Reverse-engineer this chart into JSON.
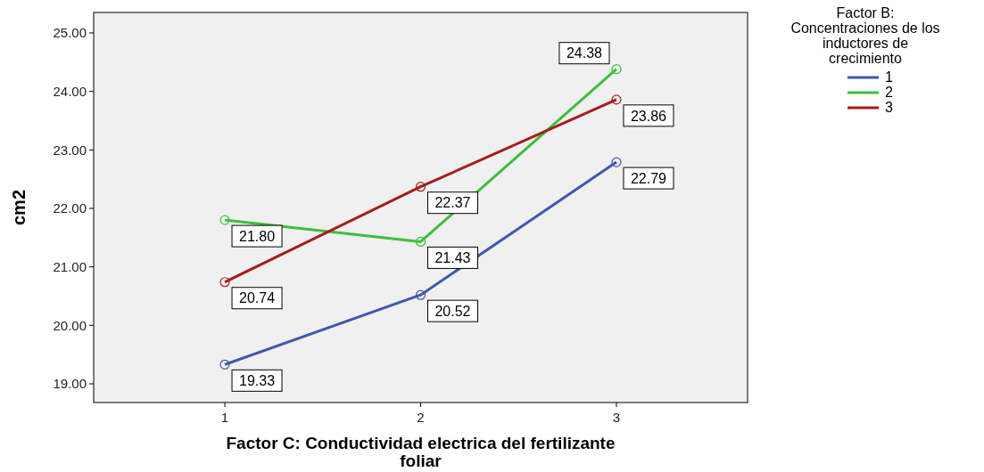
{
  "chart_data": {
    "type": "line",
    "xlabel": "Factor C: Conductividad electrica del fertilizante foliar",
    "ylabel": "cm2",
    "legend_title": "Factor B: Concentraciones de los inductores de crecimiento",
    "categories": [
      "1",
      "2",
      "3"
    ],
    "series": [
      {
        "name": "1",
        "color": "#3e58ac",
        "values": [
          19.33,
          20.52,
          22.79
        ],
        "value_labels": [
          "19.33",
          "20.52",
          "22.79"
        ]
      },
      {
        "name": "2",
        "color": "#3cbf3c",
        "values": [
          21.8,
          21.43,
          24.38
        ],
        "value_labels": [
          "21.80",
          "21.43",
          "24.38"
        ]
      },
      {
        "name": "3",
        "color": "#a51d1d",
        "values": [
          20.74,
          22.37,
          23.86
        ],
        "value_labels": [
          "20.74",
          "22.37",
          "23.86"
        ]
      }
    ],
    "ylim": [
      18.68,
      25.35
    ],
    "yticks": [
      {
        "value": 19,
        "label": "19.00"
      },
      {
        "value": 20,
        "label": "20.00"
      },
      {
        "value": 21,
        "label": "21.00"
      },
      {
        "value": 22,
        "label": "22.00"
      },
      {
        "value": 23,
        "label": "23.00"
      },
      {
        "value": 24,
        "label": "24.00"
      },
      {
        "value": 25,
        "label": "25.00"
      }
    ],
    "grid": false,
    "legend": "right",
    "marker": "circle",
    "line_style": "solid"
  }
}
